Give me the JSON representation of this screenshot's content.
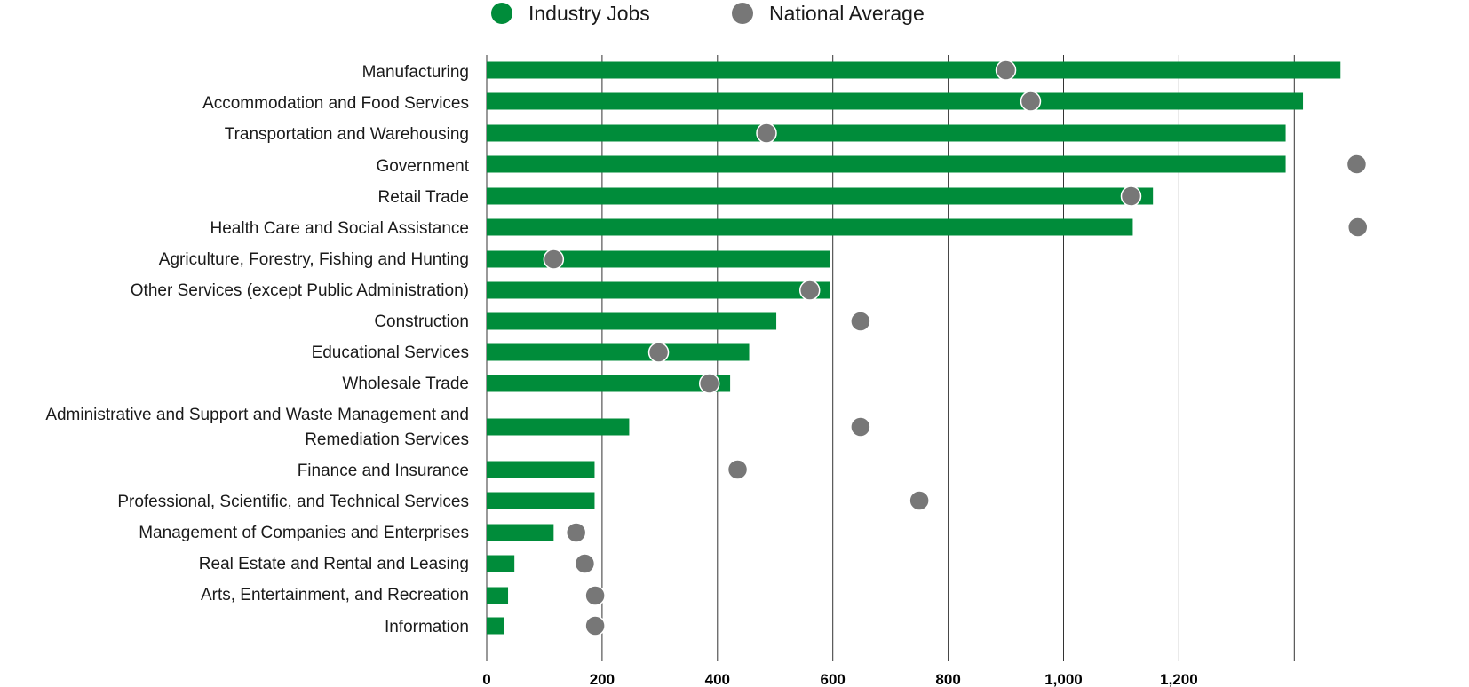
{
  "chart_data": {
    "type": "bar",
    "orientation": "horizontal",
    "categories": [
      "Manufacturing",
      "Accommodation and Food Services",
      "Transportation and Warehousing",
      "Government",
      "Retail Trade",
      "Health Care and Social Assistance",
      "Agriculture, Forestry, Fishing and Hunting",
      "Other Services (except Public Administration)",
      "Construction",
      "Educational Services",
      "Wholesale Trade",
      "Administrative and Support and Waste Management and Remediation Services",
      "Finance and Insurance",
      "Professional, Scientific, and Technical Services",
      "Management of Companies and Enterprises",
      "Real Estate and Rental and Leasing",
      "Arts, Entertainment, and Recreation",
      "Information"
    ],
    "category_lines": [
      [
        "Manufacturing"
      ],
      [
        "Accommodation and Food Services"
      ],
      [
        "Transportation and Warehousing"
      ],
      [
        "Government"
      ],
      [
        "Retail Trade"
      ],
      [
        "Health Care and Social Assistance"
      ],
      [
        "Agriculture, Forestry, Fishing and Hunting"
      ],
      [
        "Other Services (except Public Administration)"
      ],
      [
        "Construction"
      ],
      [
        "Educational Services"
      ],
      [
        "Wholesale Trade"
      ],
      [
        "Administrative and Support and Waste Management and",
        "Remediation Services"
      ],
      [
        "Finance and Insurance"
      ],
      [
        "Professional, Scientific, and Technical Services"
      ],
      [
        "Management of Companies and Enterprises"
      ],
      [
        "Real Estate and Rental and Leasing"
      ],
      [
        "Arts, Entertainment, and Recreation"
      ],
      [
        "Information"
      ]
    ],
    "series": [
      {
        "name": "Industry Jobs",
        "mark": "bar",
        "color": "#008c3a",
        "values": [
          1480,
          1415,
          1385,
          1385,
          1155,
          1120,
          595,
          595,
          502,
          455,
          422,
          247,
          187,
          187,
          116,
          48,
          37,
          30
        ]
      },
      {
        "name": "National Average",
        "mark": "dot",
        "color": "#777777",
        "values": [
          900,
          943,
          485,
          1508,
          1117,
          1510,
          116,
          560,
          648,
          298,
          386,
          648,
          435,
          750,
          155,
          170,
          188,
          188
        ]
      }
    ],
    "x_ticks": [
      0,
      200,
      400,
      600,
      800,
      1000,
      1200
    ],
    "x_tick_labels": [
      "0",
      "200",
      "400",
      "600",
      "800",
      "1,000",
      "1,200"
    ],
    "xlim": [
      0,
      1600
    ],
    "grid": "vertical",
    "legend_position": "top-center"
  }
}
